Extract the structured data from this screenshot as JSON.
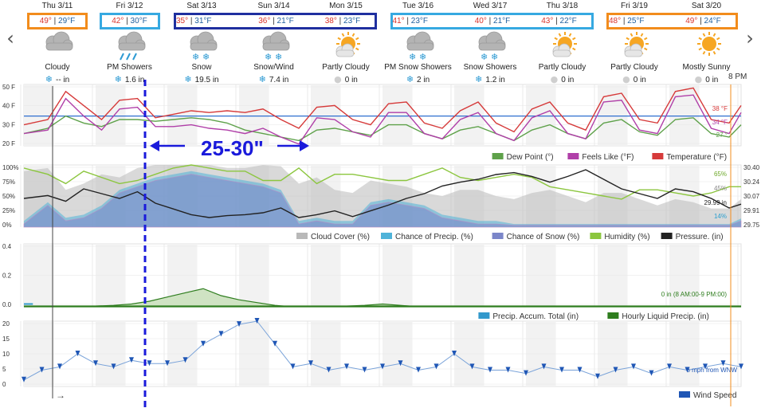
{
  "navigation": {
    "prev_label": "‹",
    "next_label": "›"
  },
  "days": [
    {
      "date": "Thu 3/11",
      "high": "49°",
      "low": "29°F",
      "condition": "Cloudy",
      "precip": "-- in",
      "precip_icon": "snowflake-icon",
      "icon": "cloud-icon",
      "box": "orange"
    },
    {
      "date": "Fri 3/12",
      "high": "42°",
      "low": "30°F",
      "condition": "PM Showers",
      "precip": "1.6 in",
      "precip_icon": "snowflake-icon",
      "icon": "rain-cloud-icon",
      "box": "lightblue"
    },
    {
      "date": "Sat 3/13",
      "high": "35°",
      "low": "31°F",
      "condition": "Snow",
      "precip": "19.5 in",
      "precip_icon": "snowflake-icon",
      "icon": "snow-cloud-icon",
      "box": "navy-start"
    },
    {
      "date": "Sun 3/14",
      "high": "36°",
      "low": "21°F",
      "condition": "Snow/Wind",
      "precip": "7.4 in",
      "precip_icon": "snowflake-icon",
      "icon": "snow-cloud-icon",
      "box": "navy-mid"
    },
    {
      "date": "Mon 3/15",
      "high": "38°",
      "low": "23°F",
      "condition": "Partly Cloudy",
      "precip": "0 in",
      "precip_icon": "drop-icon",
      "icon": "partly-cloudy-icon",
      "box": "navy-end"
    },
    {
      "date": "Tue 3/16",
      "high": "41°",
      "low": "23°F",
      "condition": "PM Snow Showers",
      "precip": "2 in",
      "precip_icon": "snowflake-icon",
      "icon": "snow-cloud-icon",
      "box": "lightblue-start"
    },
    {
      "date": "Wed 3/17",
      "high": "40°",
      "low": "21°F",
      "condition": "Snow Showers",
      "precip": "1.2 in",
      "precip_icon": "snowflake-icon",
      "icon": "snow-cloud-icon",
      "box": "lightblue-mid"
    },
    {
      "date": "Thu 3/18",
      "high": "43°",
      "low": "22°F",
      "condition": "Partly Cloudy",
      "precip": "0 in",
      "precip_icon": "drop-icon",
      "icon": "partly-cloudy-icon",
      "box": "lightblue-end"
    },
    {
      "date": "Fri 3/19",
      "high": "48°",
      "low": "25°F",
      "condition": "Partly Cloudy",
      "precip": "0 in",
      "precip_icon": "drop-icon",
      "icon": "partly-cloudy-icon",
      "box": "orange-start"
    },
    {
      "date": "Sat 3/20",
      "high": "49°",
      "low": "24°F",
      "condition": "Mostly Sunny",
      "precip": "0 in",
      "precip_icon": "drop-icon",
      "icon": "sunny-icon",
      "box": "orange-end"
    }
  ],
  "colors": {
    "temperature": "#d63a3a",
    "feels_like": "#b03fa8",
    "dew_point": "#5ea14a",
    "freezing_line": "#2f6fcf",
    "cloud_cover": "#b9b9b9",
    "chance_precip": "#4fb3d9",
    "chance_snow": "#7b86c9",
    "humidity": "#8cc63f",
    "pressure": "#222222",
    "hourly_precip": "#2e7d1e",
    "precip_accum": "#3399cc",
    "wind": "#1f56b5",
    "annotation": "#1a1adb",
    "box_orange": "#f28c1c",
    "box_lightblue": "#36a9e1",
    "box_navy": "#1f2f9f",
    "now_line": "#f28c1c"
  },
  "annotation": {
    "text": "25-30\""
  },
  "now_label": "8 PM",
  "cursor_arrow": "→",
  "chart_data": [
    {
      "type": "line",
      "name": "temperature",
      "ylim": [
        15,
        50
      ],
      "yticks": [
        "50 F",
        "40 F",
        "30 F",
        "20 F"
      ],
      "freezing_line": 32,
      "x_hours": [
        0,
        8,
        14,
        20,
        26,
        32,
        38,
        44,
        50,
        56,
        62,
        68,
        74,
        80,
        86,
        92,
        98,
        104,
        110,
        116,
        122,
        128,
        134,
        140,
        146,
        152,
        158,
        164,
        170,
        176,
        182,
        188,
        194,
        200,
        206,
        212,
        218,
        224,
        230,
        236,
        240
      ],
      "series": [
        {
          "name": "Temperature (°F)",
          "values": [
            27,
            30,
            46,
            38,
            30,
            41,
            42,
            31,
            33,
            35,
            34,
            35,
            34,
            36,
            30,
            25,
            37,
            38,
            30,
            27,
            39,
            40,
            28,
            25,
            35,
            40,
            28,
            23,
            36,
            40,
            28,
            24,
            43,
            45,
            30,
            28,
            46,
            48,
            30,
            28,
            38
          ]
        },
        {
          "name": "Feels Like (°F)",
          "values": [
            22,
            24,
            42,
            32,
            24,
            36,
            37,
            26,
            26,
            27,
            25,
            24,
            22,
            25,
            20,
            16,
            31,
            30,
            23,
            20,
            34,
            34,
            22,
            19,
            30,
            34,
            22,
            18,
            31,
            35,
            22,
            19,
            40,
            41,
            24,
            22,
            43,
            44,
            25,
            22,
            34
          ]
        },
        {
          "name": "Dew Point (°)",
          "values": [
            22,
            25,
            32,
            28,
            26,
            30,
            30,
            29,
            30,
            31,
            30,
            28,
            24,
            22,
            20,
            18,
            24,
            25,
            23,
            21,
            27,
            27,
            22,
            19,
            24,
            26,
            22,
            18,
            24,
            27,
            22,
            19,
            28,
            30,
            23,
            21,
            30,
            31,
            22,
            20,
            27
          ]
        }
      ],
      "end_labels": [
        "38 °F",
        "34 °F",
        "27 °"
      ],
      "legend": [
        "Dew Point (°)",
        "Feels Like (°F)",
        "Temperature (°F)"
      ]
    },
    {
      "type": "area",
      "name": "sky",
      "ylim": [
        0,
        100
      ],
      "yticks": [
        "100%",
        "75%",
        "50%",
        "25%",
        "0%"
      ],
      "pressure_ticks": [
        "30.40",
        "30.24",
        "30.07",
        "29.91",
        "29.75"
      ],
      "pressure_lim": [
        29.75,
        30.4
      ],
      "x_hours": [
        0,
        8,
        14,
        20,
        26,
        32,
        38,
        44,
        50,
        56,
        62,
        68,
        74,
        80,
        86,
        92,
        98,
        104,
        110,
        116,
        122,
        128,
        134,
        140,
        146,
        152,
        158,
        164,
        170,
        176,
        182,
        188,
        194,
        200,
        206,
        212,
        218,
        224,
        230,
        236,
        240
      ],
      "series": [
        {
          "name": "Cloud Cover (%)",
          "values": [
            90,
            95,
            60,
            70,
            85,
            80,
            95,
            100,
            100,
            100,
            100,
            95,
            95,
            100,
            98,
            70,
            80,
            60,
            55,
            75,
            70,
            65,
            55,
            50,
            60,
            60,
            50,
            45,
            55,
            60,
            50,
            40,
            55,
            55,
            45,
            35,
            45,
            40,
            30,
            30,
            45
          ]
        },
        {
          "name": "Chance of Precip. (%)",
          "values": [
            10,
            40,
            15,
            20,
            35,
            60,
            70,
            80,
            85,
            90,
            85,
            80,
            75,
            70,
            60,
            10,
            15,
            10,
            10,
            40,
            45,
            40,
            35,
            20,
            15,
            10,
            10,
            5,
            5,
            5,
            5,
            5,
            5,
            5,
            5,
            5,
            5,
            5,
            5,
            5,
            14
          ]
        },
        {
          "name": "Chance of Snow (%)",
          "values": [
            5,
            35,
            10,
            15,
            30,
            55,
            65,
            75,
            80,
            85,
            80,
            75,
            70,
            65,
            55,
            5,
            10,
            5,
            5,
            35,
            40,
            35,
            30,
            15,
            10,
            5,
            5,
            3,
            3,
            3,
            3,
            3,
            3,
            3,
            3,
            3,
            3,
            3,
            3,
            3,
            10
          ]
        },
        {
          "name": "Humidity (%)",
          "values": [
            95,
            85,
            70,
            90,
            80,
            70,
            75,
            85,
            95,
            100,
            95,
            90,
            90,
            75,
            75,
            95,
            70,
            85,
            85,
            80,
            75,
            75,
            85,
            95,
            80,
            75,
            80,
            85,
            80,
            65,
            60,
            55,
            50,
            45,
            60,
            60,
            55,
            50,
            55,
            65,
            65
          ]
        },
        {
          "name": "Pressure. (in)",
          "values": [
            30.05,
            30.08,
            30.02,
            30.15,
            30.1,
            30.05,
            30.12,
            30.0,
            29.94,
            29.88,
            29.85,
            29.87,
            29.88,
            29.9,
            29.95,
            29.85,
            29.88,
            29.92,
            29.86,
            29.92,
            29.98,
            30.05,
            30.1,
            30.18,
            30.22,
            30.25,
            30.3,
            30.32,
            30.28,
            30.22,
            30.28,
            30.35,
            30.25,
            30.15,
            30.1,
            30.05,
            30.15,
            30.12,
            30.05,
            29.95,
            29.99
          ]
        }
      ],
      "end_labels": [
        "65%",
        "45%",
        "29.99 in",
        "14%"
      ],
      "legend": [
        "Cloud Cover (%)",
        "Chance of Precip. (%)",
        "Chance of Snow (%)",
        "Humidity (%)",
        "Pressure. (in)"
      ]
    },
    {
      "type": "area",
      "name": "precip",
      "ylim": [
        0,
        0.45
      ],
      "yticks": [
        "0.4",
        "0.2",
        "0.0"
      ],
      "x_hours": [
        0,
        6,
        12,
        18,
        24,
        30,
        36,
        42,
        48,
        54,
        60,
        66,
        72,
        78,
        84,
        90,
        96,
        102,
        108,
        114,
        120,
        126,
        132,
        138,
        144,
        150,
        156,
        162,
        168,
        174,
        180,
        186,
        192,
        198,
        204,
        210,
        216,
        222,
        228,
        234,
        240
      ],
      "series": [
        {
          "name": "Hourly Liquid Precip. (in)",
          "values": [
            0,
            0,
            0,
            0.005,
            0.005,
            0.01,
            0.02,
            0.04,
            0.07,
            0.1,
            0.13,
            0.08,
            0.05,
            0.03,
            0.01,
            0,
            0,
            0,
            0.005,
            0.01,
            0.02,
            0.01,
            0,
            0,
            0,
            0,
            0,
            0,
            0,
            0,
            0,
            0,
            0,
            0,
            0,
            0,
            0,
            0,
            0,
            0,
            0
          ]
        },
        {
          "name": "Precip. Accum. Total (in)",
          "values": [
            0.02,
            0,
            0,
            0,
            0,
            0,
            0,
            0,
            0,
            0,
            0,
            0,
            0,
            0,
            0,
            0,
            0,
            0,
            0,
            0,
            0,
            0,
            0,
            0,
            0,
            0,
            0,
            0,
            0,
            0,
            0,
            0,
            0,
            0,
            0,
            0,
            0,
            0,
            0,
            0,
            0
          ]
        }
      ],
      "end_labels": [
        "0 in (8 AM:00-9 PM:00)"
      ],
      "legend": [
        "Precip. Accum. Total (in)",
        "Hourly Liquid Precip. (in)"
      ]
    },
    {
      "type": "line",
      "name": "wind",
      "ylim": [
        0,
        20
      ],
      "yticks": [
        "20",
        "15",
        "10",
        "5",
        "0"
      ],
      "x_hours": [
        0,
        6,
        12,
        18,
        24,
        30,
        36,
        42,
        48,
        54,
        60,
        66,
        72,
        78,
        84,
        90,
        96,
        102,
        108,
        114,
        120,
        126,
        132,
        138,
        144,
        150,
        156,
        162,
        168,
        174,
        180,
        186,
        192,
        198,
        204,
        210,
        216,
        222,
        228,
        234,
        240
      ],
      "series": [
        {
          "name": "Wind Speed",
          "values": [
            2,
            5,
            6,
            10,
            7,
            6,
            8,
            7,
            7,
            8,
            13,
            16,
            19,
            20,
            13,
            6,
            7,
            5,
            6,
            5,
            6,
            7,
            5,
            6,
            10,
            6,
            5,
            5,
            4,
            6,
            5,
            5,
            3,
            5,
            6,
            4,
            6,
            5,
            6,
            7,
            6
          ]
        }
      ],
      "end_labels": [
        "6 mph from WNW"
      ],
      "legend": [
        "Wind Speed"
      ]
    }
  ]
}
